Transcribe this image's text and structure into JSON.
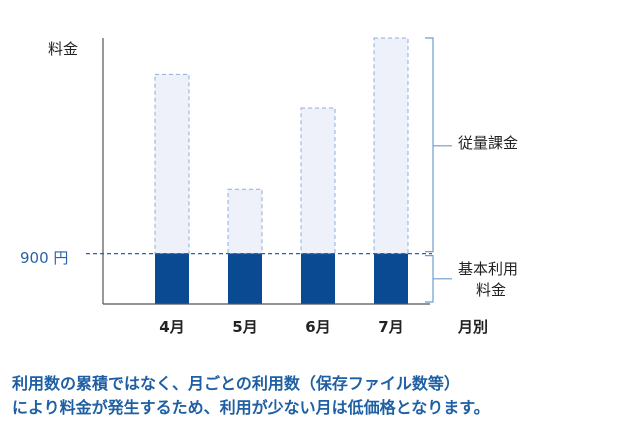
{
  "chart_data": {
    "type": "bar",
    "ylabel": "料金",
    "xlabel": "月別",
    "categories": [
      "4月",
      "5月",
      "6月",
      "7月"
    ],
    "base_fee": {
      "label": "900 円",
      "value": 900
    },
    "series": [
      {
        "name": "基本利用\n料金",
        "values": [
          900,
          900,
          900,
          900
        ]
      },
      {
        "name": "従量課金",
        "values": [
          3200,
          1150,
          2600,
          3850
        ]
      }
    ],
    "totals": [
      4100,
      2050,
      3500,
      4750
    ],
    "ylim": [
      0,
      5000
    ],
    "grid": false,
    "legend": "right (brace annotations)",
    "colors": {
      "base": "#0a4a93",
      "usage_fill": "#eef1fa",
      "usage_stroke": "#8fb0d8",
      "axis": "#555555",
      "brace": "#6f9cd0",
      "accent_text": "#2a62a8"
    }
  },
  "labels": {
    "base_fee_line": "基本利用",
    "base_fee_line2": "料金",
    "usage_fee": "従量課金"
  },
  "caption": {
    "line1": "利用数の累積ではなく、月ごとの利用数（保存ファイル数等）",
    "line2": "により料金が発生するため、利用が少ない月は低価格となります。"
  }
}
